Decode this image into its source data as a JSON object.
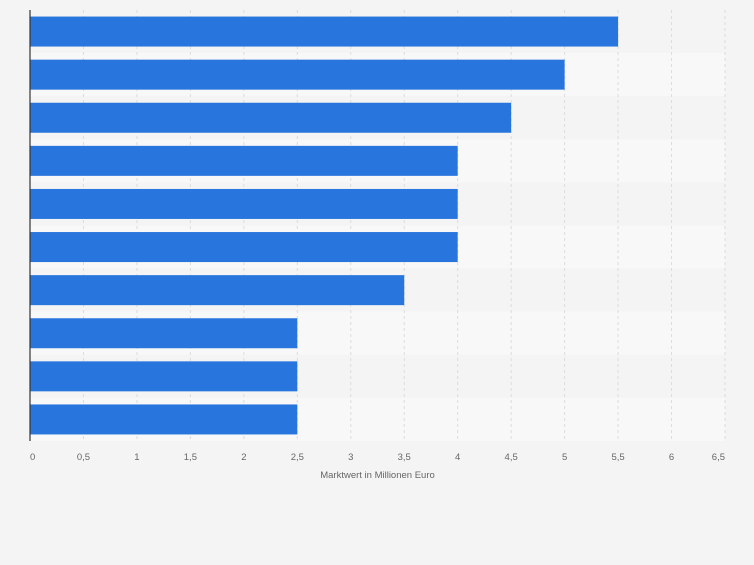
{
  "colors": {
    "bar": "#2876dd",
    "band_dark": "#f4f4f4",
    "band_light": "#f8f8f8",
    "grid": "#dcdcdc",
    "axis": "#333333",
    "tick_text": "#666666",
    "page_bg": "#f4f4f4"
  },
  "chart_data": {
    "type": "bar",
    "orientation": "horizontal",
    "title": "",
    "xlabel": "Marktwert in Millionen Euro",
    "ylabel": "",
    "xlim": [
      0,
      6.5
    ],
    "xticks": [
      "0",
      "0,5",
      "1",
      "1,5",
      "2",
      "2,5",
      "3",
      "3,5",
      "4",
      "4,5",
      "5",
      "5,5",
      "6",
      "6,5"
    ],
    "categories": [
      "",
      "",
      "",
      "",
      "",
      "",
      "",
      "",
      "",
      ""
    ],
    "values": [
      5.5,
      5.0,
      4.5,
      4.0,
      4.0,
      4.0,
      3.5,
      2.5,
      2.5,
      2.5
    ],
    "grid": true,
    "legend": "none"
  }
}
